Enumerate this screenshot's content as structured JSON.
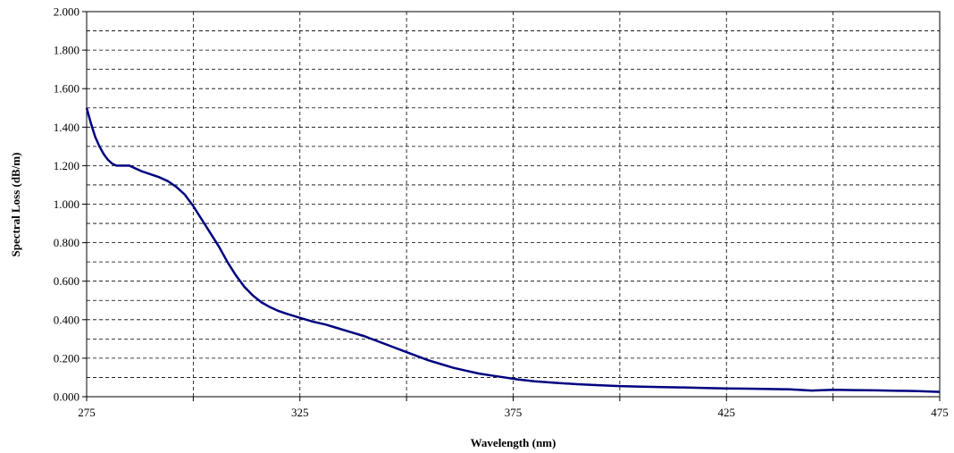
{
  "chart_data": {
    "type": "line",
    "title": "",
    "xlabel": "Wavelength (nm)",
    "ylabel": "Spectral Loss (dB/m)",
    "xlim": [
      275,
      475
    ],
    "ylim": [
      0,
      2.0
    ],
    "x_ticks": [
      "275",
      "325",
      "375",
      "425",
      "475"
    ],
    "y_ticks": [
      "0.000",
      "0.200",
      "0.400",
      "0.600",
      "0.800",
      "1.000",
      "1.200",
      "1.400",
      "1.600",
      "1.800",
      "2.000"
    ],
    "grid": true,
    "legend": "none",
    "line_color": "#000080",
    "series": [
      {
        "x": [
          275,
          276,
          277,
          278,
          279,
          280,
          281,
          282,
          283,
          284,
          285,
          286,
          288,
          290,
          292,
          294,
          296,
          298,
          300,
          302,
          304,
          306,
          308,
          310,
          312,
          314,
          316,
          318,
          320,
          322,
          325,
          328,
          331,
          334,
          337,
          340,
          343,
          346,
          349,
          352,
          355,
          358,
          361,
          364,
          367,
          370,
          373,
          376,
          380,
          385,
          390,
          395,
          400,
          405,
          410,
          415,
          420,
          425,
          430,
          435,
          440,
          445,
          450,
          455,
          460,
          465,
          470,
          475
        ],
        "y": [
          1.5,
          1.42,
          1.35,
          1.3,
          1.26,
          1.23,
          1.21,
          1.2,
          1.2,
          1.2,
          1.2,
          1.19,
          1.17,
          1.155,
          1.14,
          1.12,
          1.09,
          1.05,
          0.99,
          0.92,
          0.85,
          0.78,
          0.7,
          0.63,
          0.57,
          0.525,
          0.49,
          0.465,
          0.445,
          0.43,
          0.41,
          0.39,
          0.375,
          0.355,
          0.335,
          0.315,
          0.29,
          0.265,
          0.24,
          0.215,
          0.19,
          0.17,
          0.15,
          0.135,
          0.12,
          0.11,
          0.1,
          0.09,
          0.08,
          0.072,
          0.065,
          0.06,
          0.055,
          0.052,
          0.05,
          0.048,
          0.045,
          0.043,
          0.042,
          0.04,
          0.038,
          0.032,
          0.036,
          0.034,
          0.033,
          0.031,
          0.029,
          0.025
        ]
      }
    ]
  }
}
